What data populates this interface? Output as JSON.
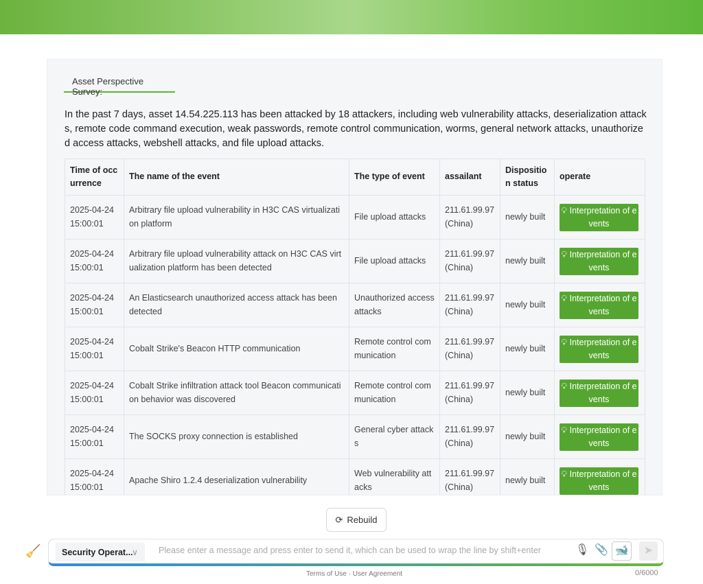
{
  "panel": {
    "tab_label": "Asset Perspective Survey:",
    "summary": "In the past 7 days, asset 14.54.225.113 has been attacked by 18 attackers, including web vulnerability attacks, deserialization attacks, remote code command execution, weak passwords, remote control communication, worms, general network attacks, unauthorized access attacks, webshell attacks, and file upload attacks.",
    "table": {
      "headers": [
        "Time of occurrence",
        "The name of the event",
        "The type of event",
        "assailant",
        "Disposition status",
        "operate"
      ],
      "rows": [
        {
          "time": "2025-04-24 15:00:01",
          "name": "Arbitrary file upload vulnerability in H3C CAS virtualization platform",
          "type": "File upload attacks",
          "assailant": "211.61.99.97 (China)",
          "status": "newly built",
          "action": "Interpretation of events"
        },
        {
          "time": "2025-04-24 15:00:01",
          "name": "Arbitrary file upload vulnerability attack on H3C CAS virtualization platform has been detected",
          "type": "File upload attacks",
          "assailant": "211.61.99.97 (China)",
          "status": "newly built",
          "action": "Interpretation of events"
        },
        {
          "time": "2025-04-24 15:00:01",
          "name": "An Elasticsearch unauthorized access attack has been detected",
          "type": "Unauthorized access attacks",
          "assailant": "211.61.99.97 (China)",
          "status": "newly built",
          "action": "Interpretation of events"
        },
        {
          "time": "2025-04-24 15:00:01",
          "name": "Cobalt Strike's Beacon HTTP communication",
          "type": "Remote control communication",
          "assailant": "211.61.99.97 (China)",
          "status": "newly built",
          "action": "Interpretation of events"
        },
        {
          "time": "2025-04-24 15:00:01",
          "name": "Cobalt Strike infiltration attack tool Beacon communication behavior was discovered",
          "type": "Remote control communication",
          "assailant": "211.61.99.97 (China)",
          "status": "newly built",
          "action": "Interpretation of events"
        },
        {
          "time": "2025-04-24 15:00:01",
          "name": "The SOCKS proxy connection is established",
          "type": "General cyber attacks",
          "assailant": "211.61.99.97 (China)",
          "status": "newly built",
          "action": "Interpretation of events"
        },
        {
          "time": "2025-04-24 15:00:01",
          "name": "Apache Shiro 1.2.4 deserialization vulnerability",
          "type": "Web vulnerability attacks",
          "assailant": "211.61.99.97 (China)",
          "status": "newly built",
          "action": "Interpretation of events"
        }
      ]
    }
  },
  "rebuild_label": "Rebuild",
  "composer": {
    "agent": "Security Operat...",
    "placeholder": "Please enter a message and press enter to send it, which can be used to wrap the line by shift+enter",
    "count": "0/6000"
  },
  "footer": {
    "terms": "Terms of Use · User Agreement"
  },
  "colors": {
    "accent": "#55a630"
  }
}
